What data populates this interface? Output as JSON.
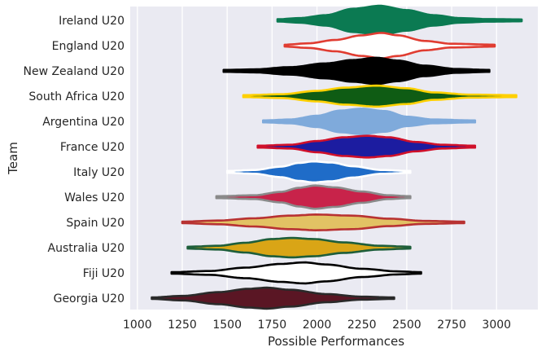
{
  "chart_data": {
    "type": "violin",
    "orientation": "horizontal",
    "xlabel": "Possible Performances",
    "ylabel": "Team",
    "xlim": [
      960,
      3230
    ],
    "xticks": [
      1000,
      1250,
      1500,
      1750,
      2000,
      2250,
      2500,
      2750,
      3000
    ],
    "grid": true,
    "background": "#eaeaf2",
    "series": [
      {
        "name": "Ireland U20",
        "fill": "#0b7a52",
        "line": "#0b7a52",
        "min": 1780,
        "max": 3140,
        "profile": [
          [
            1780,
            0.06
          ],
          [
            1900,
            0.12
          ],
          [
            2050,
            0.28
          ],
          [
            2200,
            0.62
          ],
          [
            2350,
            0.78
          ],
          [
            2500,
            0.55
          ],
          [
            2650,
            0.28
          ],
          [
            2800,
            0.12
          ],
          [
            2950,
            0.07
          ],
          [
            3140,
            0.05
          ]
        ]
      },
      {
        "name": "England U20",
        "fill": "#ffffff",
        "line": "#e03c31",
        "min": 1820,
        "max": 2990,
        "profile": [
          [
            1820,
            0.05
          ],
          [
            1950,
            0.12
          ],
          [
            2100,
            0.3
          ],
          [
            2250,
            0.55
          ],
          [
            2360,
            0.68
          ],
          [
            2450,
            0.55
          ],
          [
            2600,
            0.25
          ],
          [
            2750,
            0.1
          ],
          [
            2990,
            0.05
          ]
        ]
      },
      {
        "name": "New Zealand U20",
        "fill": "#000000",
        "line": "#000000",
        "min": 1480,
        "max": 2960,
        "profile": [
          [
            1480,
            0.05
          ],
          [
            1650,
            0.08
          ],
          [
            1850,
            0.2
          ],
          [
            2050,
            0.4
          ],
          [
            2200,
            0.58
          ],
          [
            2330,
            0.7
          ],
          [
            2450,
            0.55
          ],
          [
            2600,
            0.28
          ],
          [
            2780,
            0.1
          ],
          [
            2960,
            0.05
          ]
        ]
      },
      {
        "name": "South Africa U20",
        "fill": "#0f5c14",
        "line": "#ffd000",
        "min": 1590,
        "max": 3110,
        "profile": [
          [
            1590,
            0.05
          ],
          [
            1800,
            0.1
          ],
          [
            2000,
            0.28
          ],
          [
            2150,
            0.45
          ],
          [
            2330,
            0.56
          ],
          [
            2500,
            0.42
          ],
          [
            2650,
            0.2
          ],
          [
            2850,
            0.08
          ],
          [
            3110,
            0.05
          ]
        ]
      },
      {
        "name": "Argentina U20",
        "fill": "#7faadb",
        "line": "#7faadb",
        "min": 1700,
        "max": 2880,
        "profile": [
          [
            1700,
            0.05
          ],
          [
            1850,
            0.1
          ],
          [
            2000,
            0.3
          ],
          [
            2130,
            0.58
          ],
          [
            2250,
            0.68
          ],
          [
            2380,
            0.55
          ],
          [
            2500,
            0.25
          ],
          [
            2650,
            0.1
          ],
          [
            2880,
            0.05
          ]
        ]
      },
      {
        "name": "France U20",
        "fill": "#1c1ca0",
        "line": "#d0102a",
        "min": 1670,
        "max": 2880,
        "profile": [
          [
            1670,
            0.05
          ],
          [
            1850,
            0.1
          ],
          [
            2000,
            0.3
          ],
          [
            2150,
            0.5
          ],
          [
            2280,
            0.58
          ],
          [
            2400,
            0.5
          ],
          [
            2550,
            0.25
          ],
          [
            2700,
            0.1
          ],
          [
            2880,
            0.05
          ]
        ]
      },
      {
        "name": "Italy U20",
        "fill": "#1f6cc8",
        "line": "#ffffff",
        "min": 1500,
        "max": 2520,
        "profile": [
          [
            1500,
            0.05
          ],
          [
            1650,
            0.1
          ],
          [
            1800,
            0.28
          ],
          [
            1900,
            0.48
          ],
          [
            1980,
            0.56
          ],
          [
            2080,
            0.5
          ],
          [
            2200,
            0.3
          ],
          [
            2360,
            0.1
          ],
          [
            2520,
            0.05
          ]
        ]
      },
      {
        "name": "Wales U20",
        "fill": "#c8234a",
        "line": "#8a8a8a",
        "min": 1440,
        "max": 2520,
        "profile": [
          [
            1440,
            0.05
          ],
          [
            1650,
            0.1
          ],
          [
            1800,
            0.28
          ],
          [
            1900,
            0.5
          ],
          [
            1990,
            0.62
          ],
          [
            2100,
            0.52
          ],
          [
            2250,
            0.3
          ],
          [
            2400,
            0.1
          ],
          [
            2520,
            0.05
          ]
        ]
      },
      {
        "name": "Spain U20",
        "fill": "#e2c264",
        "line": "#b83232",
        "min": 1250,
        "max": 2820,
        "profile": [
          [
            1250,
            0.04
          ],
          [
            1450,
            0.1
          ],
          [
            1650,
            0.22
          ],
          [
            1850,
            0.36
          ],
          [
            2000,
            0.42
          ],
          [
            2200,
            0.36
          ],
          [
            2400,
            0.2
          ],
          [
            2600,
            0.08
          ],
          [
            2820,
            0.04
          ]
        ]
      },
      {
        "name": "Australia U20",
        "fill": "#d9a516",
        "line": "#1e5e3a",
        "min": 1280,
        "max": 2520,
        "profile": [
          [
            1280,
            0.05
          ],
          [
            1450,
            0.1
          ],
          [
            1600,
            0.26
          ],
          [
            1750,
            0.46
          ],
          [
            1860,
            0.52
          ],
          [
            1980,
            0.46
          ],
          [
            2150,
            0.28
          ],
          [
            2350,
            0.1
          ],
          [
            2520,
            0.05
          ]
        ]
      },
      {
        "name": "Fiji U20",
        "fill": "#ffffff",
        "line": "#000000",
        "min": 1190,
        "max": 2580,
        "profile": [
          [
            1190,
            0.04
          ],
          [
            1400,
            0.1
          ],
          [
            1600,
            0.28
          ],
          [
            1800,
            0.48
          ],
          [
            1930,
            0.56
          ],
          [
            2050,
            0.45
          ],
          [
            2250,
            0.22
          ],
          [
            2450,
            0.08
          ],
          [
            2580,
            0.04
          ]
        ]
      },
      {
        "name": "Georgia U20",
        "fill": "#5a1624",
        "line": "#2a2a2a",
        "min": 1080,
        "max": 2430,
        "profile": [
          [
            1080,
            0.04
          ],
          [
            1250,
            0.12
          ],
          [
            1450,
            0.32
          ],
          [
            1620,
            0.5
          ],
          [
            1720,
            0.56
          ],
          [
            1850,
            0.45
          ],
          [
            2050,
            0.22
          ],
          [
            2250,
            0.08
          ],
          [
            2430,
            0.04
          ]
        ]
      }
    ]
  }
}
